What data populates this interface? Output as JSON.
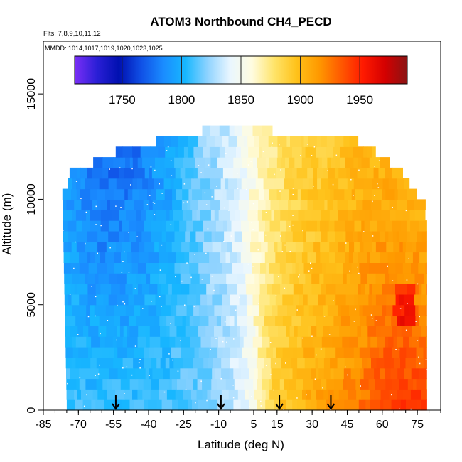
{
  "chart_data": {
    "type": "heatmap",
    "title": "ATOM3 Northbound CH4_PECD",
    "subtitle_flights": "Flts: 7,8,9,10,11,12",
    "subtitle_dates": "MMDD: 1014,1017,1019,1020,1023,1025",
    "xlabel": "Latitude (deg N)",
    "ylabel": "Altitude (m)",
    "xlim": [
      -85,
      85
    ],
    "ylim": [
      0,
      17500
    ],
    "x_tick_labels": [
      "-85",
      "-70",
      "-55",
      "-40",
      "-25",
      "-10",
      "5",
      "15",
      "30",
      "45",
      "60",
      "75"
    ],
    "x_tick_values": [
      -85,
      -70,
      -55,
      -40,
      -25,
      -10,
      5,
      15,
      30,
      45,
      60,
      75
    ],
    "y_tick_labels": [
      "0",
      "5000",
      "10000",
      "15000"
    ],
    "y_tick_values": [
      0,
      5000,
      10000,
      15000
    ],
    "colorbar": {
      "range": [
        1710,
        1990
      ],
      "tick_labels": [
        "1750",
        "1800",
        "1850",
        "1900",
        "1950"
      ],
      "tick_values": [
        1750,
        1800,
        1850,
        1900,
        1950
      ],
      "colors": [
        "#7b2ff7",
        "#2a1fd6",
        "#0010b0",
        "#1050e6",
        "#1a8cff",
        "#17b7ff",
        "#8fd3ff",
        "#e9f6ff",
        "#fffce0",
        "#ffe46a",
        "#ffc21a",
        "#ff9a00",
        "#ff5a00",
        "#ff1a00",
        "#d40000",
        "#8a1414"
      ]
    },
    "column_transects_lat": [
      -54,
      -9,
      16,
      38
    ],
    "data_extent": {
      "x_range": [
        -77,
        79
      ],
      "y_range": [
        0,
        13500
      ]
    },
    "ch4_profile_by_latitude": {
      "lat": [
        -77,
        -60,
        -45,
        -30,
        -20,
        -10,
        0,
        5,
        12,
        20,
        30,
        40,
        50,
        60,
        70,
        79
      ],
      "ch4_surface": [
        1808,
        1806,
        1808,
        1810,
        1815,
        1822,
        1838,
        1860,
        1885,
        1898,
        1908,
        1915,
        1925,
        1938,
        1945,
        1940
      ],
      "ch4_upper": [
        1790,
        1770,
        1775,
        1795,
        1815,
        1830,
        1845,
        1858,
        1870,
        1880,
        1888,
        1893,
        1900,
        1900,
        1895,
        1890
      ]
    }
  }
}
